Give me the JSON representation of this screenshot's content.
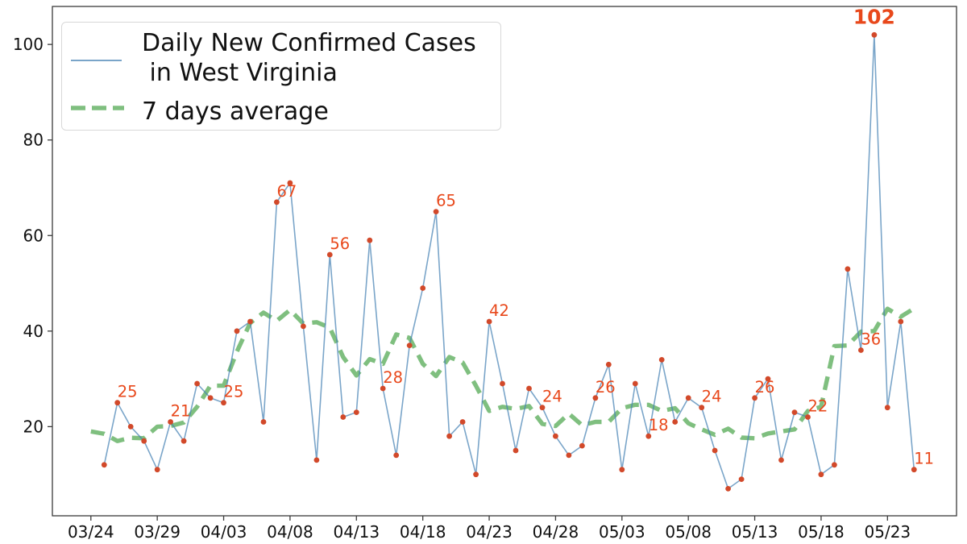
{
  "chart_data": {
    "type": "line",
    "title": "",
    "xlabel": "",
    "ylabel": "",
    "grid": false,
    "legend_position": "upper left",
    "x": [
      "03/24",
      "03/25",
      "03/26",
      "03/27",
      "03/28",
      "03/29",
      "03/30",
      "03/31",
      "04/01",
      "04/02",
      "04/03",
      "04/04",
      "04/05",
      "04/06",
      "04/07",
      "04/08",
      "04/09",
      "04/10",
      "04/11",
      "04/12",
      "04/13",
      "04/14",
      "04/15",
      "04/16",
      "04/17",
      "04/18",
      "04/19",
      "04/20",
      "04/21",
      "04/22",
      "04/23",
      "04/24",
      "04/25",
      "04/26",
      "04/27",
      "04/28",
      "04/29",
      "04/30",
      "05/01",
      "05/02",
      "05/03",
      "05/04",
      "05/05",
      "05/06",
      "05/07",
      "05/08",
      "05/09",
      "05/10",
      "05/11",
      "05/12",
      "05/13",
      "05/14",
      "05/15",
      "05/16",
      "05/17",
      "05/18",
      "05/19",
      "05/20",
      "05/21",
      "05/22",
      "05/23",
      "05/24",
      "05/25"
    ],
    "series": [
      {
        "name": "Daily New Confirmed Cases\n in West Virginia",
        "style": "solid-with-markers",
        "values": [
          null,
          12,
          25,
          20,
          17,
          11,
          21,
          17,
          29,
          26,
          25,
          40,
          42,
          21,
          67,
          71,
          41,
          13,
          56,
          22,
          23,
          59,
          28,
          14,
          37,
          49,
          65,
          18,
          21,
          10,
          42,
          29,
          15,
          28,
          24,
          18,
          14,
          16,
          26,
          33,
          11,
          29,
          18,
          34,
          21,
          26,
          24,
          15,
          7,
          9,
          26,
          30,
          13,
          23,
          22,
          10,
          12,
          53,
          36,
          102,
          24,
          42,
          11
        ]
      },
      {
        "name": "7 days average",
        "style": "thick-dashed",
        "derivation": "centered 7-day rolling mean of daily series (partial windows at edges)",
        "values": [
          19.0,
          18.5,
          17.0,
          17.67,
          17.57,
          20.0,
          20.14,
          20.86,
          24.14,
          28.57,
          28.57,
          35.71,
          41.71,
          43.86,
          42.14,
          44.43,
          41.57,
          41.86,
          40.71,
          34.57,
          30.71,
          34.14,
          33.14,
          39.29,
          38.57,
          33.14,
          30.57,
          34.57,
          33.43,
          28.57,
          23.29,
          24.14,
          23.71,
          24.29,
          20.57,
          20.14,
          22.71,
          20.29,
          21.0,
          21.0,
          23.86,
          24.57,
          24.57,
          23.29,
          23.86,
          20.71,
          19.43,
          18.29,
          19.57,
          17.71,
          17.57,
          18.57,
          19.0,
          19.43,
          23.29,
          24.14,
          36.86,
          37.0,
          39.86,
          40.0,
          44.67,
          43.0,
          44.75
        ]
      }
    ],
    "annotations": [
      {
        "i": 2,
        "label": "25"
      },
      {
        "i": 6,
        "label": "21"
      },
      {
        "i": 10,
        "label": "25"
      },
      {
        "i": 14,
        "label": "67"
      },
      {
        "i": 18,
        "label": "56"
      },
      {
        "i": 22,
        "label": "28"
      },
      {
        "i": 26,
        "label": "65"
      },
      {
        "i": 30,
        "label": "42"
      },
      {
        "i": 34,
        "label": "24"
      },
      {
        "i": 38,
        "label": "26"
      },
      {
        "i": 42,
        "label": "18"
      },
      {
        "i": 46,
        "label": "24"
      },
      {
        "i": 50,
        "label": "26"
      },
      {
        "i": 54,
        "label": "22"
      },
      {
        "i": 58,
        "label": "36"
      },
      {
        "i": 59,
        "label": "102",
        "emphasis": true
      },
      {
        "i": 62,
        "label": "11"
      }
    ],
    "x_tick_indices": [
      0,
      5,
      10,
      15,
      20,
      25,
      30,
      35,
      40,
      45,
      50,
      55,
      60
    ],
    "x_tick_labels": [
      "03/24",
      "03/29",
      "04/03",
      "04/08",
      "04/13",
      "04/18",
      "04/23",
      "04/28",
      "05/03",
      "05/08",
      "05/13",
      "05/18",
      "05/23"
    ],
    "y_ticks": [
      20,
      40,
      60,
      80,
      100
    ],
    "ylim": [
      1.34,
      107.95
    ],
    "xlim_pad_days": 2.9
  },
  "legend": {
    "daily_label_line1": "Daily New Confirmed Cases",
    "daily_label_line2": " in West Virginia",
    "average_label": "7 days average"
  },
  "colors": {
    "daily_line": "#4682b4",
    "daily_line_opacity": "0.72",
    "marker": "#d2492a",
    "average_line": "#008000",
    "average_line_opacity": "0.5",
    "annotation": "#e8481b",
    "axis": "#3a3a3a",
    "tick_label": "#111111"
  }
}
